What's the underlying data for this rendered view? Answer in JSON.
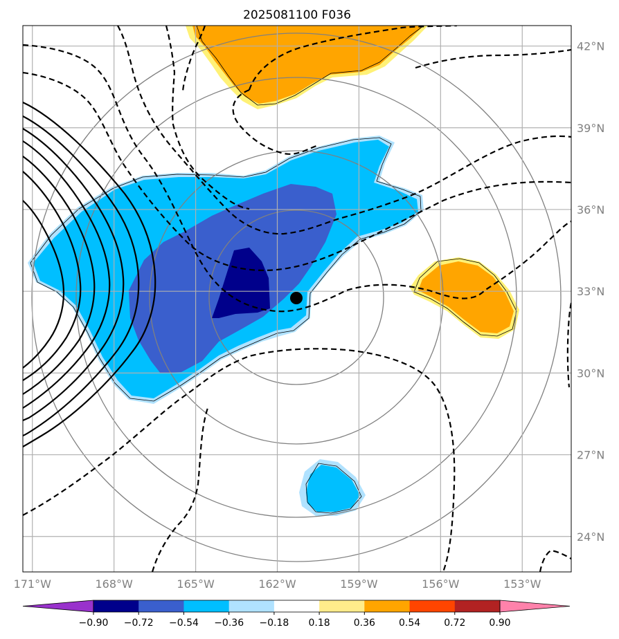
{
  "chart_data": {
    "type": "map-contour",
    "title": "2025081100 F036",
    "x_ticks": [
      "171°W",
      "168°W",
      "165°W",
      "162°W",
      "159°W",
      "156°W",
      "153°W"
    ],
    "x_tick_values": [
      -171,
      -168,
      -165,
      -162,
      -159,
      -156,
      -153
    ],
    "y_ticks": [
      "24°N",
      "27°N",
      "30°N",
      "33°N",
      "36°N",
      "39°N",
      "42°N"
    ],
    "y_tick_values": [
      24,
      27,
      30,
      33,
      36,
      39,
      42
    ],
    "xlim": [
      -171.35,
      -151.2
    ],
    "ylim": [
      22.7,
      42.75
    ],
    "grid": true,
    "storm_center": {
      "lon": -161.35,
      "lat": 32.75
    },
    "range_rings_deg": [
      2.5,
      5,
      8,
      12
    ],
    "colorbar": {
      "levels": [
        "−0.90",
        "−0.72",
        "−0.54",
        "−0.36",
        "−0.18",
        "0.18",
        "0.36",
        "0.54",
        "0.72",
        "0.90"
      ],
      "level_values": [
        -0.9,
        -0.72,
        -0.54,
        -0.36,
        -0.18,
        0.18,
        0.36,
        0.54,
        0.72,
        0.9
      ],
      "colors": [
        "#9932cc",
        "#00008b",
        "#3a5fcd",
        "#00bfff",
        "#b0e2ff",
        "#ffffff",
        "#ffec8b",
        "#ffa500",
        "#ff4500",
        "#b22222",
        "#ff82ab"
      ],
      "extend": "both"
    }
  }
}
